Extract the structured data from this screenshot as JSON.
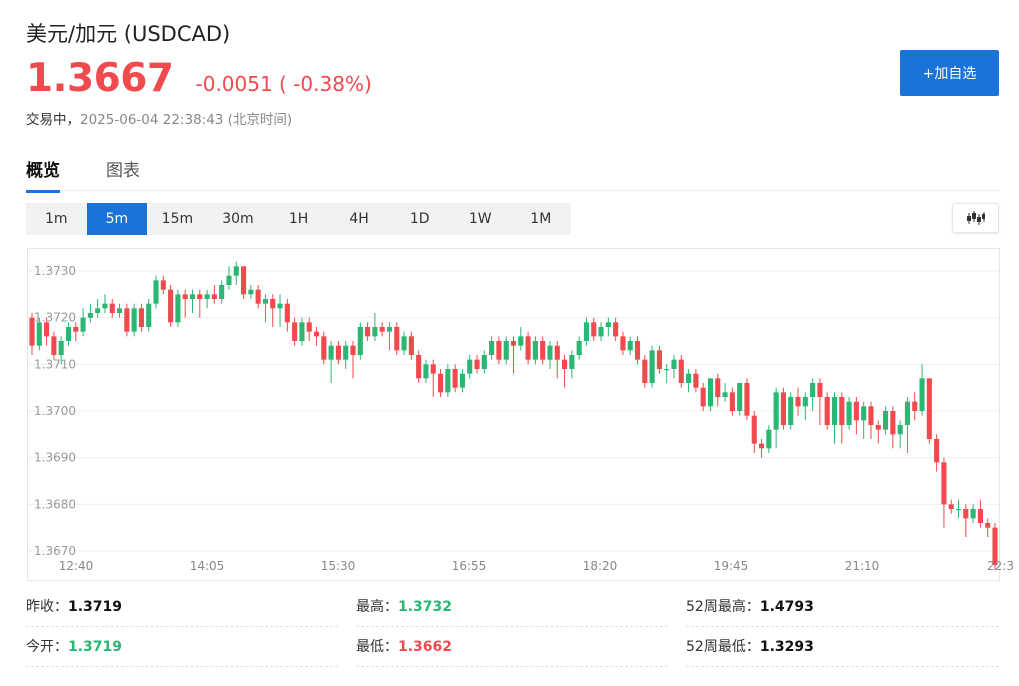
{
  "header": {
    "title": "美元/加元  (USDCAD)",
    "price": "1.3667",
    "change": "-0.0051 ( -0.38%)",
    "status_label": "交易中，",
    "timestamp": "2025-06-04 22:38:43 (北京时间)",
    "add_button_label": "+加自选",
    "down_color": "#f0494e",
    "accent_color": "#1a73d8"
  },
  "tabs": [
    {
      "label": "概览",
      "active": true
    },
    {
      "label": "图表",
      "active": false
    }
  ],
  "periods": [
    {
      "label": "1m",
      "active": false
    },
    {
      "label": "5m",
      "active": true
    },
    {
      "label": "15m",
      "active": false
    },
    {
      "label": "30m",
      "active": false
    },
    {
      "label": "1H",
      "active": false
    },
    {
      "label": "4H",
      "active": false
    },
    {
      "label": "1D",
      "active": false
    },
    {
      "label": "1W",
      "active": false
    },
    {
      "label": "1M",
      "active": false
    }
  ],
  "chart_toggle_icon": "candlestick-icon",
  "chart_data": {
    "type": "candlestick",
    "title": "",
    "ylim": [
      1.3668,
      1.3736
    ],
    "y_ticks": [
      "1.3730",
      "1.3720",
      "1.3710",
      "1.3700",
      "1.3690",
      "1.3680",
      "1.3670"
    ],
    "y_tick_values": [
      1.373,
      1.372,
      1.371,
      1.37,
      1.369,
      1.368,
      1.367
    ],
    "x_ticks": [
      "12:40",
      "14:05",
      "15:30",
      "16:55",
      "18:20",
      "19:45",
      "21:10",
      "22:3"
    ],
    "grid": true,
    "up_color": "#2bb673",
    "down_color": "#f0494e",
    "candles": [
      [
        1.372,
        1.3714,
        1.3721,
        1.3712
      ],
      [
        1.3714,
        1.3719,
        1.372,
        1.3713
      ],
      [
        1.3719,
        1.3716,
        1.372,
        1.3714
      ],
      [
        1.3716,
        1.3712,
        1.3717,
        1.3711
      ],
      [
        1.3712,
        1.3715,
        1.3716,
        1.371
      ],
      [
        1.3715,
        1.3718,
        1.3719,
        1.3714
      ],
      [
        1.3718,
        1.3717,
        1.3719,
        1.3715
      ],
      [
        1.3717,
        1.372,
        1.3722,
        1.3716
      ],
      [
        1.372,
        1.3721,
        1.3723,
        1.3719
      ],
      [
        1.3721,
        1.3722,
        1.3724,
        1.372
      ],
      [
        1.3722,
        1.3723,
        1.3725,
        1.3721
      ],
      [
        1.3723,
        1.3721,
        1.3724,
        1.372
      ],
      [
        1.3721,
        1.3722,
        1.3723,
        1.372
      ],
      [
        1.3722,
        1.3717,
        1.3723,
        1.3716
      ],
      [
        1.3717,
        1.3722,
        1.3723,
        1.3716
      ],
      [
        1.3722,
        1.3718,
        1.3723,
        1.3717
      ],
      [
        1.3718,
        1.3723,
        1.3724,
        1.3717
      ],
      [
        1.3723,
        1.3728,
        1.3729,
        1.3722
      ],
      [
        1.3728,
        1.3726,
        1.3729,
        1.3725
      ],
      [
        1.3726,
        1.3719,
        1.3727,
        1.3718
      ],
      [
        1.3719,
        1.3725,
        1.3726,
        1.3718
      ],
      [
        1.3725,
        1.3724,
        1.3726,
        1.372
      ],
      [
        1.3724,
        1.3725,
        1.3726,
        1.3721
      ],
      [
        1.3725,
        1.3724,
        1.3726,
        1.372
      ],
      [
        1.3724,
        1.3725,
        1.3726,
        1.3722
      ],
      [
        1.3725,
        1.3724,
        1.3727,
        1.3723
      ],
      [
        1.3724,
        1.3727,
        1.3728,
        1.3723
      ],
      [
        1.3727,
        1.3729,
        1.3731,
        1.3726
      ],
      [
        1.3729,
        1.3731,
        1.3732,
        1.3727
      ],
      [
        1.3731,
        1.3725,
        1.3731,
        1.3724
      ],
      [
        1.3725,
        1.3726,
        1.3727,
        1.3724
      ],
      [
        1.3726,
        1.3723,
        1.3727,
        1.3722
      ],
      [
        1.3723,
        1.3724,
        1.3725,
        1.3719
      ],
      [
        1.3724,
        1.3722,
        1.3725,
        1.3718
      ],
      [
        1.3722,
        1.3723,
        1.3725,
        1.3718
      ],
      [
        1.3723,
        1.3719,
        1.3724,
        1.3717
      ],
      [
        1.3719,
        1.3715,
        1.372,
        1.3714
      ],
      [
        1.3715,
        1.3719,
        1.372,
        1.3714
      ],
      [
        1.3719,
        1.3717,
        1.372,
        1.3715
      ],
      [
        1.3717,
        1.3716,
        1.3718,
        1.3714
      ],
      [
        1.3716,
        1.3711,
        1.3717,
        1.371
      ],
      [
        1.3711,
        1.3714,
        1.3715,
        1.3706
      ],
      [
        1.3714,
        1.3711,
        1.3715,
        1.371
      ],
      [
        1.3711,
        1.3714,
        1.3715,
        1.3709
      ],
      [
        1.3714,
        1.3712,
        1.3715,
        1.3707
      ],
      [
        1.3712,
        1.3718,
        1.3719,
        1.3711
      ],
      [
        1.3718,
        1.3716,
        1.3719,
        1.3715
      ],
      [
        1.3716,
        1.3718,
        1.3721,
        1.3715
      ],
      [
        1.3718,
        1.3717,
        1.3719,
        1.3716
      ],
      [
        1.3717,
        1.3718,
        1.3719,
        1.3713
      ],
      [
        1.3718,
        1.3713,
        1.3719,
        1.3712
      ],
      [
        1.3713,
        1.3716,
        1.3717,
        1.3712
      ],
      [
        1.3716,
        1.3712,
        1.3717,
        1.3711
      ],
      [
        1.3712,
        1.3707,
        1.3713,
        1.3706
      ],
      [
        1.3707,
        1.371,
        1.3711,
        1.3706
      ],
      [
        1.371,
        1.3708,
        1.3711,
        1.3703
      ],
      [
        1.3708,
        1.3704,
        1.3709,
        1.3703
      ],
      [
        1.3704,
        1.3709,
        1.371,
        1.3703
      ],
      [
        1.3709,
        1.3705,
        1.371,
        1.3704
      ],
      [
        1.3705,
        1.3708,
        1.3709,
        1.3704
      ],
      [
        1.3708,
        1.3711,
        1.3712,
        1.3707
      ],
      [
        1.3711,
        1.3709,
        1.3712,
        1.3708
      ],
      [
        1.3709,
        1.3712,
        1.3713,
        1.3708
      ],
      [
        1.3712,
        1.3715,
        1.3716,
        1.3711
      ],
      [
        1.3715,
        1.3711,
        1.3716,
        1.371
      ],
      [
        1.3711,
        1.3715,
        1.3716,
        1.371
      ],
      [
        1.3715,
        1.3714,
        1.3716,
        1.3708
      ],
      [
        1.3714,
        1.3716,
        1.3718,
        1.3713
      ],
      [
        1.3716,
        1.3711,
        1.3717,
        1.371
      ],
      [
        1.3711,
        1.3715,
        1.3716,
        1.371
      ],
      [
        1.3715,
        1.3711,
        1.3716,
        1.371
      ],
      [
        1.3711,
        1.3714,
        1.3715,
        1.3709
      ],
      [
        1.3714,
        1.3711,
        1.3715,
        1.3707
      ],
      [
        1.3711,
        1.3709,
        1.3712,
        1.3705
      ],
      [
        1.3709,
        1.3712,
        1.3713,
        1.3707
      ],
      [
        1.3712,
        1.3715,
        1.3716,
        1.3711
      ],
      [
        1.3715,
        1.3719,
        1.372,
        1.3714
      ],
      [
        1.3719,
        1.3716,
        1.372,
        1.3715
      ],
      [
        1.3716,
        1.3718,
        1.3719,
        1.3715
      ],
      [
        1.3718,
        1.3719,
        1.372,
        1.3716
      ],
      [
        1.3719,
        1.3716,
        1.372,
        1.3715
      ],
      [
        1.3716,
        1.3713,
        1.3717,
        1.3712
      ],
      [
        1.3713,
        1.3715,
        1.3716,
        1.3712
      ],
      [
        1.3715,
        1.3711,
        1.3716,
        1.371
      ],
      [
        1.3711,
        1.3706,
        1.3712,
        1.3705
      ],
      [
        1.3706,
        1.3713,
        1.3714,
        1.3705
      ],
      [
        1.3713,
        1.3709,
        1.3714,
        1.3708
      ],
      [
        1.3709,
        1.3709,
        1.371,
        1.3706
      ],
      [
        1.3709,
        1.3711,
        1.3712,
        1.3707
      ],
      [
        1.3711,
        1.3706,
        1.3712,
        1.3705
      ],
      [
        1.3706,
        1.3708,
        1.3709,
        1.3704
      ],
      [
        1.3708,
        1.3705,
        1.3709,
        1.3704
      ],
      [
        1.3705,
        1.3701,
        1.3706,
        1.37
      ],
      [
        1.3701,
        1.3707,
        1.3707,
        1.37
      ],
      [
        1.3707,
        1.3703,
        1.3708,
        1.3701
      ],
      [
        1.3703,
        1.3704,
        1.3706,
        1.3702
      ],
      [
        1.3704,
        1.37,
        1.3705,
        1.3699
      ],
      [
        1.37,
        1.3706,
        1.3706,
        1.3699
      ],
      [
        1.3706,
        1.3699,
        1.3707,
        1.3698
      ],
      [
        1.3699,
        1.3693,
        1.37,
        1.3691
      ],
      [
        1.3693,
        1.3692,
        1.3694,
        1.369
      ],
      [
        1.3692,
        1.3696,
        1.3697,
        1.3691
      ],
      [
        1.3696,
        1.3704,
        1.3705,
        1.3692
      ],
      [
        1.3704,
        1.3697,
        1.3705,
        1.3696
      ],
      [
        1.3697,
        1.3703,
        1.3704,
        1.3696
      ],
      [
        1.3703,
        1.3701,
        1.3705,
        1.3699
      ],
      [
        1.3701,
        1.3703,
        1.3704,
        1.3698
      ],
      [
        1.3703,
        1.3706,
        1.3707,
        1.37
      ],
      [
        1.3706,
        1.3703,
        1.3707,
        1.3697
      ],
      [
        1.3703,
        1.3697,
        1.3704,
        1.3696
      ],
      [
        1.3697,
        1.3703,
        1.3704,
        1.3693
      ],
      [
        1.3703,
        1.3697,
        1.3704,
        1.3693
      ],
      [
        1.3697,
        1.3702,
        1.3703,
        1.3696
      ],
      [
        1.3702,
        1.3698,
        1.3703,
        1.3695
      ],
      [
        1.3698,
        1.3701,
        1.3702,
        1.3694
      ],
      [
        1.3701,
        1.3697,
        1.3702,
        1.3694
      ],
      [
        1.3697,
        1.3696,
        1.3698,
        1.3693
      ],
      [
        1.3696,
        1.37,
        1.3701,
        1.3695
      ],
      [
        1.37,
        1.3695,
        1.3701,
        1.3692
      ],
      [
        1.3695,
        1.3697,
        1.3698,
        1.3692
      ],
      [
        1.3697,
        1.3702,
        1.3703,
        1.3691
      ],
      [
        1.3702,
        1.37,
        1.3704,
        1.3698
      ],
      [
        1.37,
        1.3707,
        1.371,
        1.3699
      ],
      [
        1.3707,
        1.3694,
        1.3707,
        1.3693
      ],
      [
        1.3694,
        1.3689,
        1.3695,
        1.3687
      ],
      [
        1.3689,
        1.368,
        1.369,
        1.3675
      ],
      [
        1.368,
        1.3679,
        1.3681,
        1.3678
      ],
      [
        1.3679,
        1.3679,
        1.3681,
        1.3677
      ],
      [
        1.3679,
        1.3677,
        1.368,
        1.3673
      ],
      [
        1.3677,
        1.3679,
        1.368,
        1.3676
      ],
      [
        1.3679,
        1.3676,
        1.3681,
        1.3675
      ],
      [
        1.3676,
        1.3675,
        1.3677,
        1.3673
      ],
      [
        1.3675,
        1.3667,
        1.3676,
        1.3666
      ]
    ]
  },
  "stats": {
    "prev_close": {
      "label": "昨收：",
      "value": "1.3719"
    },
    "open": {
      "label": "今开：",
      "value": "1.3719"
    },
    "high": {
      "label": "最高：",
      "value": "1.3732"
    },
    "low": {
      "label": "最低：",
      "value": "1.3662"
    },
    "high52": {
      "label": "52周最高：",
      "value": "1.4793"
    },
    "low52": {
      "label": "52周最低：",
      "value": "1.3293"
    }
  }
}
